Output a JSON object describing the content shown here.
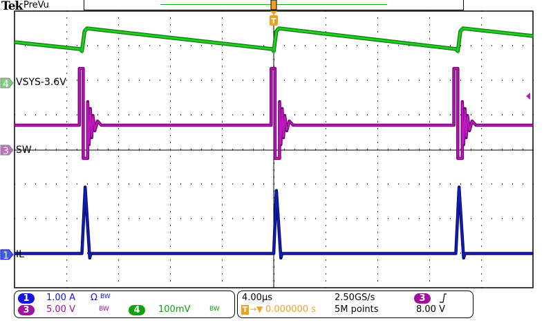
{
  "header": {
    "logo": "Tek",
    "mode": "PreVu"
  },
  "trace_labels": {
    "ch4": "VSYS-3.6V",
    "ch3": "SW",
    "ch1": "IL"
  },
  "channels": [
    {
      "num": "1",
      "scale": "1.00 A",
      "flags": "Ω",
      "bw": "BW",
      "color": "#1414e6"
    },
    {
      "num": "3",
      "scale": "5.00 V",
      "bw": "BW",
      "color": "#a010a0"
    },
    {
      "num": "4",
      "scale": "100mV",
      "bw": "BW",
      "color": "#10a010"
    }
  ],
  "horizontal": {
    "timebase": "4.00µs",
    "sample_rate": "2.50GS/s",
    "trigger_pos": "0.000000 s",
    "record_length": "5M points"
  },
  "trigger": {
    "source": "3",
    "slope": "rising",
    "level": "8.00 V"
  },
  "colors": {
    "ch1": "#1020c0",
    "ch3": "#c018c0",
    "ch4": "#20d020",
    "trigger": "#f0a020"
  },
  "chart_data": {
    "type": "line",
    "grid": true,
    "xlabel": "",
    "ylabel": "",
    "xlim_us": [
      -20,
      20
    ],
    "x_divisions": 10,
    "y_divisions": 8,
    "series": [
      {
        "name": "VSYS-3.6V",
        "channel": 4,
        "units": "mV",
        "volts_per_div": 100,
        "points": [
          [
            -20,
            118
          ],
          [
            -14.9,
            98
          ],
          [
            -14.8,
            92
          ],
          [
            -14.6,
            150
          ],
          [
            -14.4,
            158
          ],
          [
            -0.1,
            98
          ],
          [
            0.0,
            92
          ],
          [
            0.2,
            150
          ],
          [
            0.4,
            158
          ],
          [
            14.1,
            98
          ],
          [
            14.2,
            92
          ],
          [
            14.4,
            150
          ],
          [
            14.6,
            158
          ],
          [
            20,
            136
          ]
        ]
      },
      {
        "name": "SW",
        "channel": 3,
        "units": "V",
        "volts_per_div": 5,
        "points": [
          [
            -20,
            3.6
          ],
          [
            -15.0,
            3.6
          ],
          [
            -15.0,
            11.8
          ],
          [
            -14.7,
            11.8
          ],
          [
            -14.7,
            -1.2
          ],
          [
            -14.35,
            -1.2
          ],
          [
            -14.35,
            7
          ],
          [
            -14.25,
            0.8
          ],
          [
            -14.15,
            6
          ],
          [
            -14.05,
            1.8
          ],
          [
            -13.95,
            5
          ],
          [
            -13.8,
            2.8
          ],
          [
            -13.6,
            4.2
          ],
          [
            -13.3,
            3.6
          ],
          [
            -0.2,
            3.6
          ],
          [
            -0.2,
            11.8
          ],
          [
            0.1,
            11.8
          ],
          [
            0.1,
            -1.2
          ],
          [
            0.45,
            -1.2
          ],
          [
            0.45,
            7
          ],
          [
            0.55,
            0.8
          ],
          [
            0.65,
            6
          ],
          [
            0.75,
            1.8
          ],
          [
            0.85,
            5
          ],
          [
            1.0,
            2.8
          ],
          [
            1.2,
            4.2
          ],
          [
            1.5,
            3.6
          ],
          [
            13.9,
            3.6
          ],
          [
            13.9,
            11.8
          ],
          [
            14.2,
            11.8
          ],
          [
            14.2,
            -1.2
          ],
          [
            14.55,
            -1.2
          ],
          [
            14.55,
            7
          ],
          [
            14.65,
            0.8
          ],
          [
            14.75,
            6
          ],
          [
            14.85,
            1.8
          ],
          [
            14.95,
            5
          ],
          [
            15.1,
            2.8
          ],
          [
            15.3,
            4.2
          ],
          [
            15.6,
            3.6
          ],
          [
            20,
            3.6
          ]
        ]
      },
      {
        "name": "IL",
        "channel": 1,
        "units": "A",
        "volts_per_div": 1,
        "points": [
          [
            -20,
            0.03
          ],
          [
            -14.8,
            0.03
          ],
          [
            -14.55,
            1.95
          ],
          [
            -14.2,
            -0.1
          ],
          [
            -14.1,
            0.03
          ],
          [
            0.0,
            0.03
          ],
          [
            0.2,
            1.85
          ],
          [
            0.55,
            -0.1
          ],
          [
            0.65,
            0.03
          ],
          [
            14.05,
            0.03
          ],
          [
            14.3,
            1.95
          ],
          [
            14.65,
            -0.1
          ],
          [
            14.75,
            0.03
          ],
          [
            20,
            0.03
          ]
        ]
      }
    ]
  }
}
